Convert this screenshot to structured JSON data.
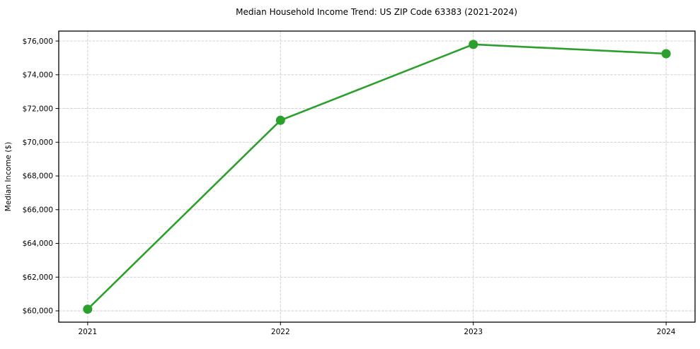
{
  "chart_data": {
    "type": "line",
    "title": "Median Household Income Trend: US ZIP Code 63383 (2021-2024)",
    "xlabel": "",
    "ylabel": "Median Income ($)",
    "x": [
      2021,
      2022,
      2023,
      2024
    ],
    "series": [
      {
        "name": "Median Household Income",
        "values": [
          60100,
          71300,
          75800,
          75250
        ]
      }
    ],
    "xtick_labels": [
      "2021",
      "2022",
      "2023",
      "2024"
    ],
    "ytick_values": [
      60000,
      62000,
      64000,
      66000,
      68000,
      70000,
      72000,
      74000,
      76000
    ],
    "ytick_labels": [
      "$60,000",
      "$62,000",
      "$64,000",
      "$66,000",
      "$68,000",
      "$70,000",
      "$72,000",
      "$74,000",
      "$76,000"
    ],
    "xlim": [
      2020.85,
      2024.15
    ],
    "ylim": [
      59330,
      76590
    ],
    "grid": "dashed-both-axes",
    "legend": "none",
    "line_color": "#2ca02c",
    "marker": "circle",
    "marker_color": "#2ca02c",
    "grid_color": "#cccccc",
    "axis_color": "#000000",
    "background_color": "#ffffff"
  }
}
